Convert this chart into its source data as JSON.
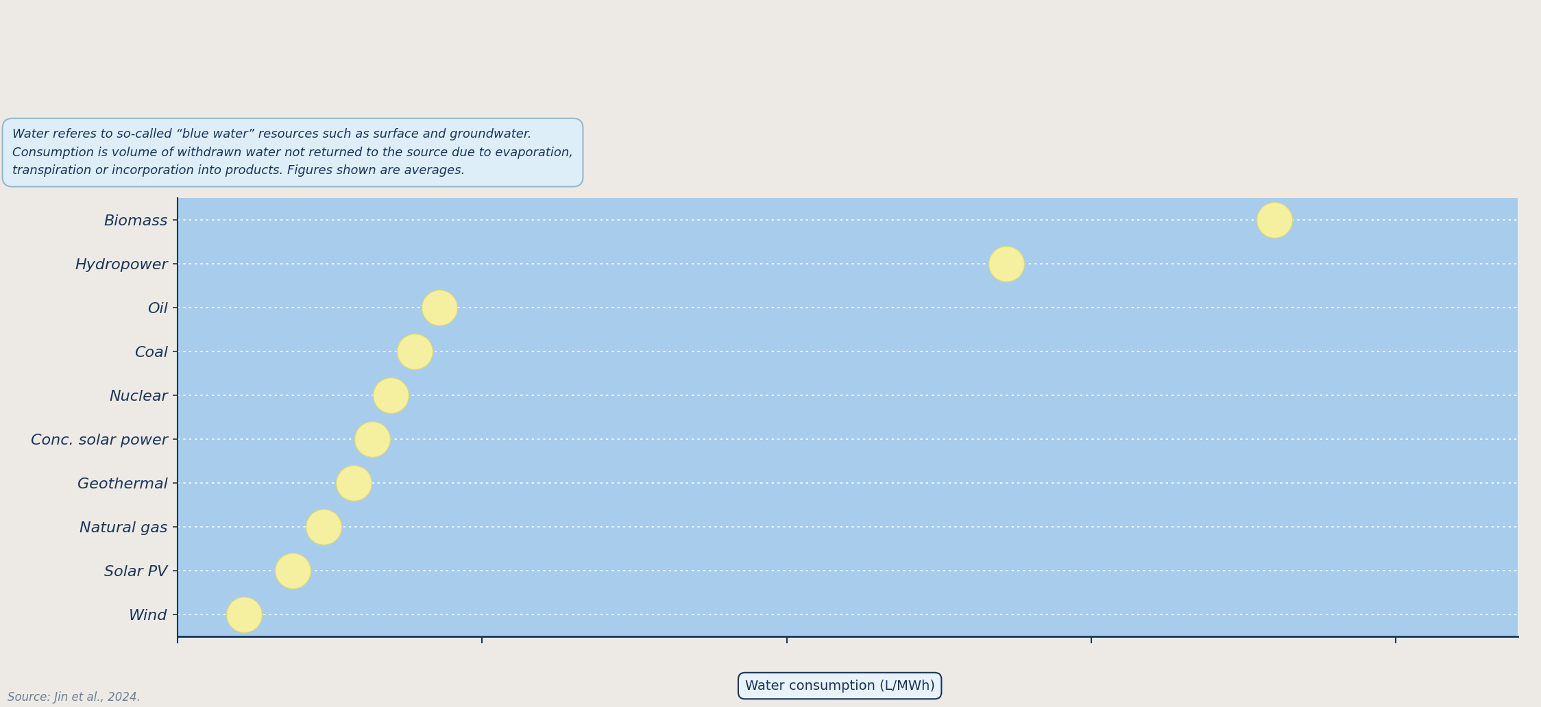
{
  "categories": [
    "Wind",
    "Solar PV",
    "Natural gas",
    "Geothermal",
    "Conc. solar power",
    "Nuclear",
    "Coal",
    "Oil",
    "Hydropower",
    "Biomass"
  ],
  "values": [
    55,
    95,
    120,
    145,
    160,
    175,
    195,
    215,
    680,
    900
  ],
  "dot_color": "#f5f0a0",
  "dot_edgecolor": "#ddd880",
  "bg_color": "#a8cceb",
  "outer_bg": "#edeae5",
  "axis_color": "#1a3558",
  "grid_color": "#ffffff",
  "dot_size": 1400,
  "xlabel": "Water consumption (L/MWh)",
  "source_text": "Source: Jin et al., 2024.",
  "note_text": "Water referes to so-called “blue water” resources such as surface and groundwater.\nConsumption is volume of withdrawn water not returned to the source due to evaporation,\ntranspiration or incorporation into products. Figures shown are averages.",
  "xlim": [
    0,
    1100
  ],
  "xticks": [
    0,
    250,
    500,
    750,
    1000
  ],
  "label_fontsize": 16,
  "tick_fontsize": 13,
  "note_fontsize": 13,
  "source_fontsize": 12
}
